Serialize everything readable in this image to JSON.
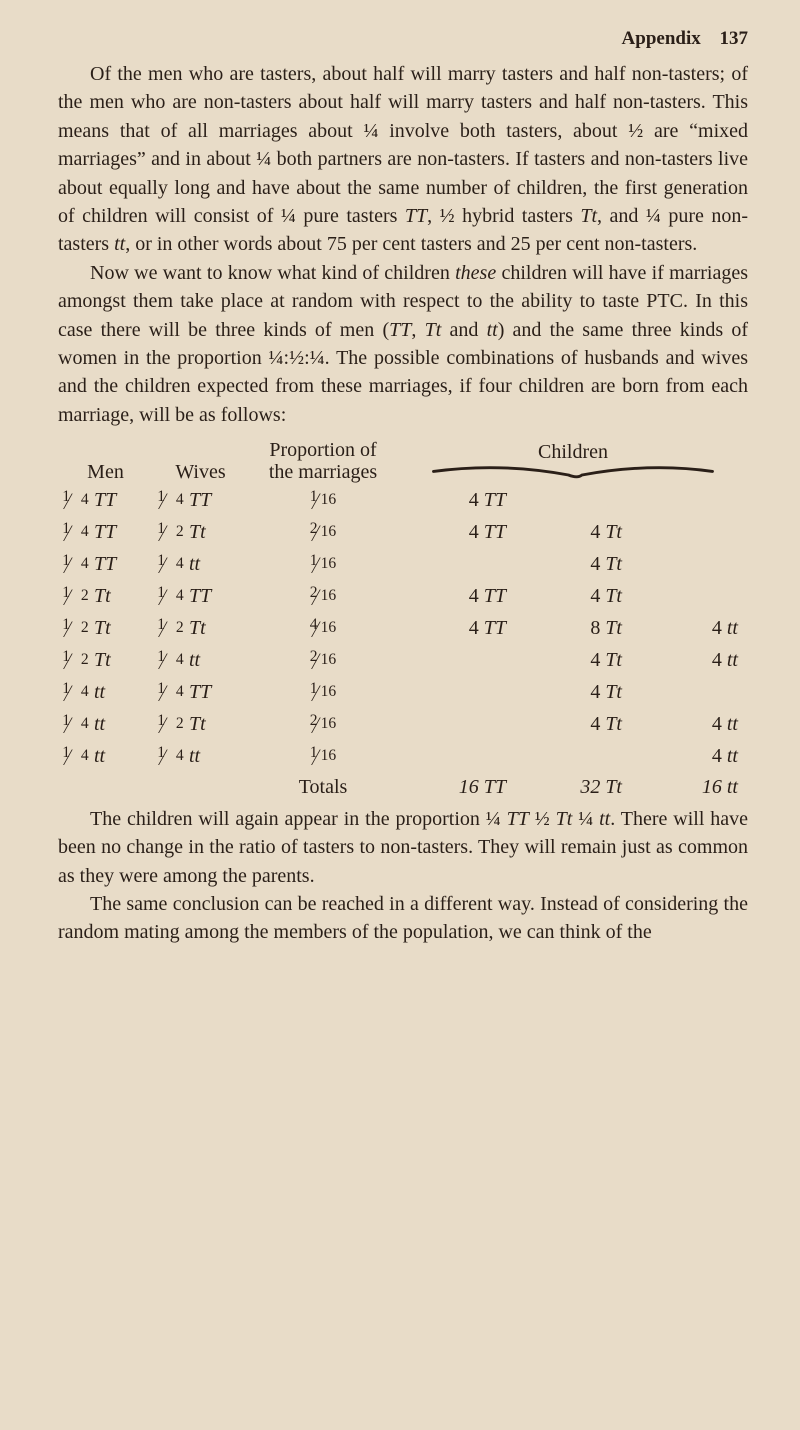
{
  "colors": {
    "background": "#e8dcc8",
    "text": "#2a1f18",
    "brace": "#2a1f18"
  },
  "typography": {
    "body_font": "Georgia / Times New Roman (serif)",
    "body_fontsize_pt": 15,
    "header_fontsize_pt": 14
  },
  "header": {
    "appendix_label": "Appendix",
    "page_number": "137"
  },
  "paragraph1": "Of the men who are tasters, about half will marry tasters and half non-tasters; of the men who are non-tasters about half will marry tasters and half non-tasters. This means that of all marriages about ¼ involve both tasters, about ½ are \"mixed marriages\" and in about ¼ both partners are non-tasters. If tasters and non-tasters live about equally long and have about the same number of children, the first generation of children will consist of ¼ pure tasters TT, ½ hybrid tasters Tt, and ¼ pure non-tasters tt, or in other words about 75 per cent tasters and 25 per cent non-tasters.",
  "paragraph2": "Now we want to know what kind of children these children will have if marriages amongst them take place at random with respect to the ability to taste PTC. In this case there will be three kinds of men (TT, Tt and tt) and the same three kinds of women in the proportion ¼:½:¼. The possible combinations of husbands and wives and the children expected from these marriages, if four children are born from each marriage, will be as follows:",
  "paragraph3": "The children will again appear in the proportion ¼ TT ½ Tt ¼ tt. There will have been no change in the ratio of tasters to non-tasters. They will remain just as common as they were among the parents.",
  "paragraph4": "The same conclusion can be reached in a different way. Instead of considering the random mating among the members of the population, we can think of the",
  "table": {
    "type": "table",
    "headers": {
      "men": "Men",
      "wives": "Wives",
      "proportion": "Proportion of\nthe marriages",
      "children": "Children"
    },
    "rows": [
      {
        "men_frac": [
          "1",
          "4"
        ],
        "men_g": "TT",
        "wives_frac": [
          "1",
          "4"
        ],
        "wives_g": "TT",
        "prop": [
          "1",
          "16"
        ],
        "TT": "4 TT",
        "Tt": "",
        "tt": ""
      },
      {
        "men_frac": [
          "1",
          "4"
        ],
        "men_g": "TT",
        "wives_frac": [
          "1",
          "2"
        ],
        "wives_g": "Tt",
        "prop": [
          "2",
          "16"
        ],
        "TT": "4 TT",
        "Tt": "4 Tt",
        "tt": ""
      },
      {
        "men_frac": [
          "1",
          "4"
        ],
        "men_g": "TT",
        "wives_frac": [
          "1",
          "4"
        ],
        "wives_g": "tt",
        "prop": [
          "1",
          "16"
        ],
        "TT": "",
        "Tt": "4 Tt",
        "tt": ""
      },
      {
        "men_frac": [
          "1",
          "2"
        ],
        "men_g": "Tt",
        "wives_frac": [
          "1",
          "4"
        ],
        "wives_g": "TT",
        "prop": [
          "2",
          "16"
        ],
        "TT": "4 TT",
        "Tt": "4 Tt",
        "tt": ""
      },
      {
        "men_frac": [
          "1",
          "2"
        ],
        "men_g": "Tt",
        "wives_frac": [
          "1",
          "2"
        ],
        "wives_g": "Tt",
        "prop": [
          "4",
          "16"
        ],
        "TT": "4 TT",
        "Tt": "8 Tt",
        "tt": "4 tt"
      },
      {
        "men_frac": [
          "1",
          "2"
        ],
        "men_g": "Tt",
        "wives_frac": [
          "1",
          "4"
        ],
        "wives_g": "tt",
        "prop": [
          "2",
          "16"
        ],
        "TT": "",
        "Tt": "4 Tt",
        "tt": "4 tt"
      },
      {
        "men_frac": [
          "1",
          "4"
        ],
        "men_g": "tt",
        "wives_frac": [
          "1",
          "4"
        ],
        "wives_g": "TT",
        "prop": [
          "1",
          "16"
        ],
        "TT": "",
        "Tt": "4 Tt",
        "tt": ""
      },
      {
        "men_frac": [
          "1",
          "4"
        ],
        "men_g": "tt",
        "wives_frac": [
          "1",
          "2"
        ],
        "wives_g": "Tt",
        "prop": [
          "2",
          "16"
        ],
        "TT": "",
        "Tt": "4 Tt",
        "tt": "4 tt"
      },
      {
        "men_frac": [
          "1",
          "4"
        ],
        "men_g": "tt",
        "wives_frac": [
          "1",
          "4"
        ],
        "wives_g": "tt",
        "prop": [
          "1",
          "16"
        ],
        "TT": "",
        "Tt": "",
        "tt": "4 tt"
      }
    ],
    "totals": {
      "label": "Totals",
      "TT": "16 TT",
      "Tt": "32 Tt",
      "tt": "16 tt"
    }
  }
}
